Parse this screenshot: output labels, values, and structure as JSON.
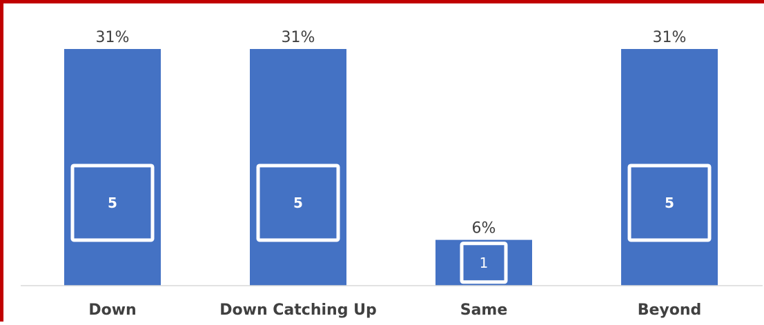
{
  "chart_data": {
    "type": "bar",
    "categories": [
      "Down",
      "Down Catching Up",
      "Same",
      "Beyond"
    ],
    "series": [
      {
        "values": [
          31,
          31,
          6,
          31
        ],
        "value_labels": [
          "31%",
          "31%",
          "6%",
          "31%"
        ],
        "counts": [
          "5",
          "5",
          "1",
          "5"
        ]
      }
    ],
    "ylim": [
      0,
      31
    ],
    "grid": false,
    "legend": "none",
    "colors": {
      "bar": "#4472c4",
      "count_box_stroke": "#ffffff",
      "frame": "#c00000",
      "baseline": "#d9d9d9",
      "text": "#404040"
    }
  }
}
